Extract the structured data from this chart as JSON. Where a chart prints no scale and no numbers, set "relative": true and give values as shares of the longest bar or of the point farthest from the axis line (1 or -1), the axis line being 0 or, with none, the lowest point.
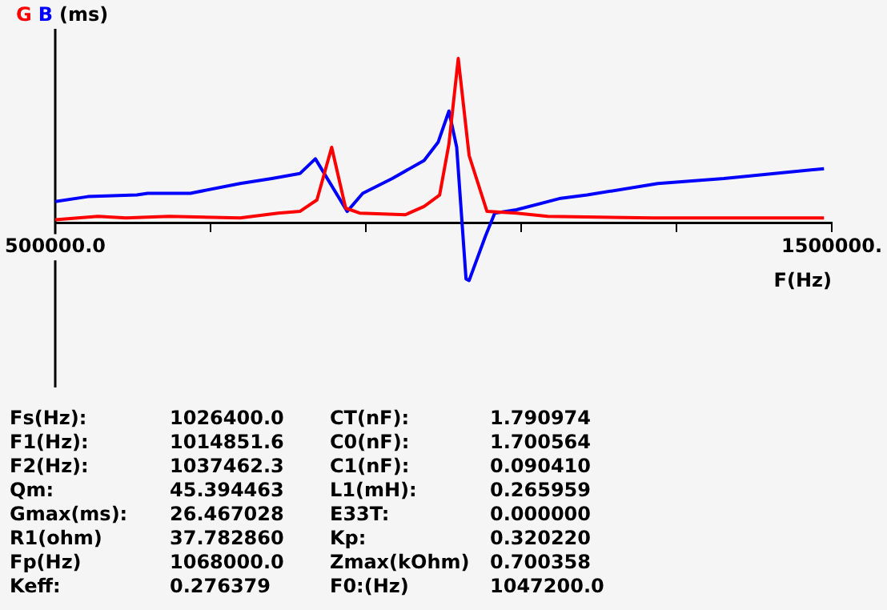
{
  "chart_data": {
    "type": "line",
    "relative": true,
    "ylabel": "(ms)",
    "xlabel": "F(Hz)",
    "xlim": [
      500000,
      1500000
    ],
    "xticks": [
      {
        "value": 500000,
        "label": "500000.0"
      },
      {
        "value": 700000,
        "label": null
      },
      {
        "value": 900000,
        "label": null
      },
      {
        "value": 1100000,
        "label": null
      },
      {
        "value": 1300000,
        "label": null
      },
      {
        "value": 1500000,
        "label": "1500000."
      }
    ],
    "grid": false,
    "marker": "none",
    "line_style": "solid",
    "series": [
      {
        "name": "G",
        "color": "#ff0000",
        "type": "line",
        "x": [
          500000,
          555000,
          591000,
          646500,
          738000,
          787000,
          815000,
          837000,
          856000,
          874000,
          892000,
          951000,
          975000,
          995000,
          1007000,
          1019000,
          1033000,
          1056000,
          1094000,
          1134000,
          1270000,
          1490000
        ],
        "values": [
          0.02,
          0.04,
          0.03,
          0.04,
          0.03,
          0.06,
          0.07,
          0.14,
          0.46,
          0.09,
          0.06,
          0.05,
          0.1,
          0.17,
          0.48,
          1.0,
          0.41,
          0.07,
          0.06,
          0.04,
          0.03,
          0.03
        ]
      },
      {
        "name": "B",
        "color": "#0000ff",
        "type": "line",
        "x": [
          500000,
          542000,
          605000,
          619000,
          674000,
          738000,
          779000,
          815000,
          835000,
          876000,
          896000,
          934000,
          975000,
          993000,
          1007000,
          1017000,
          1029000,
          1033000,
          1054000,
          1066000,
          1094000,
          1151000,
          1185000,
          1276000,
          1361000,
          1490000
        ],
        "values": [
          0.13,
          0.16,
          0.17,
          0.18,
          0.18,
          0.24,
          0.27,
          0.3,
          0.39,
          0.07,
          0.18,
          0.27,
          0.38,
          0.49,
          0.68,
          0.46,
          -0.34,
          -0.35,
          -0.08,
          0.06,
          0.08,
          0.15,
          0.17,
          0.24,
          0.27,
          0.33
        ]
      }
    ],
    "annotations": [
      "Fs(Hz):",
      "1026400.0",
      "CT(nF):",
      "1.790974",
      "F1(Hz):",
      "1014851.6",
      "C0(nF):",
      "1.700564",
      "F2(Hz):",
      "1037462.3",
      "C1(nF):",
      "0.090410",
      "Qm:",
      "45.394463",
      "L1(mH):",
      "0.265959",
      "Gmax(ms):",
      "26.467028",
      "E33T:",
      "0.000000",
      "R1(ohm)",
      "37.782860",
      "Kp:",
      "0.320220",
      "Fp(Hz)",
      "1068000.0",
      "Zmax(kOhm)",
      "0.700358",
      "Keff:",
      "0.276379",
      "F0:(Hz)",
      "1047200.0"
    ]
  }
}
